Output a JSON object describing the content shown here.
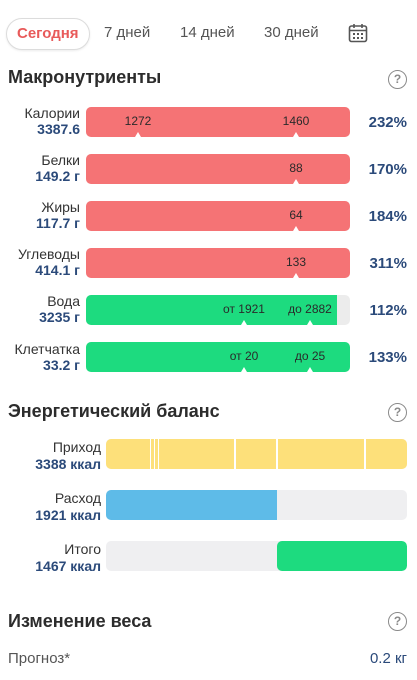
{
  "tabs": [
    {
      "label": "Сегодня",
      "active": true
    },
    {
      "label": "7 дней"
    },
    {
      "label": "14 дней"
    },
    {
      "label": "30 дней"
    }
  ],
  "calendar_icon": "calendar-icon",
  "macros": {
    "title": "Макронутриенты",
    "help": "?",
    "rows": [
      {
        "label": "Калории",
        "value": "3387.6",
        "marker1": "1272",
        "marker2": "1460",
        "percent": "232%",
        "color": "#f57375",
        "fill": 1.0
      },
      {
        "label": "Белки",
        "value": "149.2 г",
        "marker1": "88",
        "percent": "170%",
        "color": "#f57375",
        "fill": 1.0
      },
      {
        "label": "Жиры",
        "value": "117.7 г",
        "marker1": "64",
        "percent": "184%",
        "color": "#f57375",
        "fill": 1.0
      },
      {
        "label": "Углеводы",
        "value": "414.1 г",
        "marker1": "133",
        "percent": "311%",
        "color": "#f57375",
        "fill": 1.0
      },
      {
        "label": "Вода",
        "value": "3235 г",
        "marker1": "от 1921",
        "marker2": "до 2882",
        "percent": "112%",
        "color": "#1ddb7f",
        "fill": 0.95
      },
      {
        "label": "Клетчатка",
        "value": "33.2 г",
        "marker1": "от 20",
        "marker2": "до 25",
        "percent": "133%",
        "color": "#1ddb7f",
        "fill": 1.0
      }
    ]
  },
  "energy": {
    "title": "Энергетический баланс",
    "help": "?",
    "income_label": "Приход",
    "income_value": "3388 ккал",
    "expense_label": "Расход",
    "expense_value": "1921 ккал",
    "total_label": "Итого",
    "total_value": "1467 ккал",
    "colors": {
      "income": "#fde07a",
      "expense": "#5ebbe8",
      "total": "#1ddb7f"
    }
  },
  "weight": {
    "title": "Изменение веса",
    "help": "?",
    "forecast_label": "Прогноз*",
    "forecast_value": "0.2 кг"
  }
}
